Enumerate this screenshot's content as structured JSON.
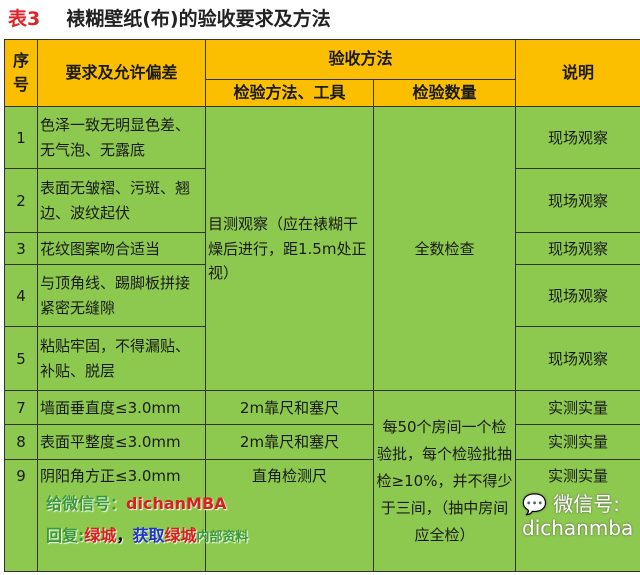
{
  "title": {
    "number": "表3",
    "text": "裱糊壁纸(布)的验收要求及方法"
  },
  "header": {
    "seq": "序号",
    "req": "要求及允许偏差",
    "method_group": "验收方法",
    "method": "检验方法、工具",
    "quantity": "检验数量",
    "note": "说明"
  },
  "rows": [
    {
      "seq": "1",
      "req": "色泽一致无明显色差、无气泡、无露底",
      "note": "现场观察"
    },
    {
      "seq": "2",
      "req": "表面无皱褶、污斑、翘边、波纹起伏",
      "note": "现场观察"
    },
    {
      "seq": "3",
      "req": "花纹图案吻合适当",
      "note": "现场观察"
    },
    {
      "seq": "4",
      "req": "与顶角线、踢脚板拼接紧密无缝隙",
      "note": "现场观察"
    },
    {
      "seq": "5",
      "req": "粘贴牢固，不得漏贴、补贴、脱层",
      "note": "现场观察"
    },
    {
      "seq": "7",
      "req": "墙面垂直度≤3.0mm",
      "method": "2m靠尺和塞尺",
      "note": "实测实量"
    },
    {
      "seq": "8",
      "req": "表面平整度≤3.0mm",
      "method": "2m靠尺和塞尺",
      "note": "实测实量"
    },
    {
      "seq": "9",
      "req": "阴阳角方正≤3.0mm",
      "method": "直角检测尺",
      "note": "实测实量"
    }
  ],
  "merged": {
    "method_1_5": "目测观察（应在裱糊干燥后进行，距1.5m处正视）",
    "quantity_1_5": "全数检查",
    "quantity_7_9": "每50个房间一个检验批，每个检验批抽检≥10%，并不得少于三间，（抽中房间应全检）"
  },
  "watermark": {
    "line1a": "给微信号：",
    "line1b": "dichanMBA",
    "line2a": "回复:",
    "line2b": "绿城",
    "line2c": "，",
    "line2d": "获取",
    "line2e": "绿城",
    "line2f": "内部资料",
    "wechat": "微信号: dichanmba"
  }
}
